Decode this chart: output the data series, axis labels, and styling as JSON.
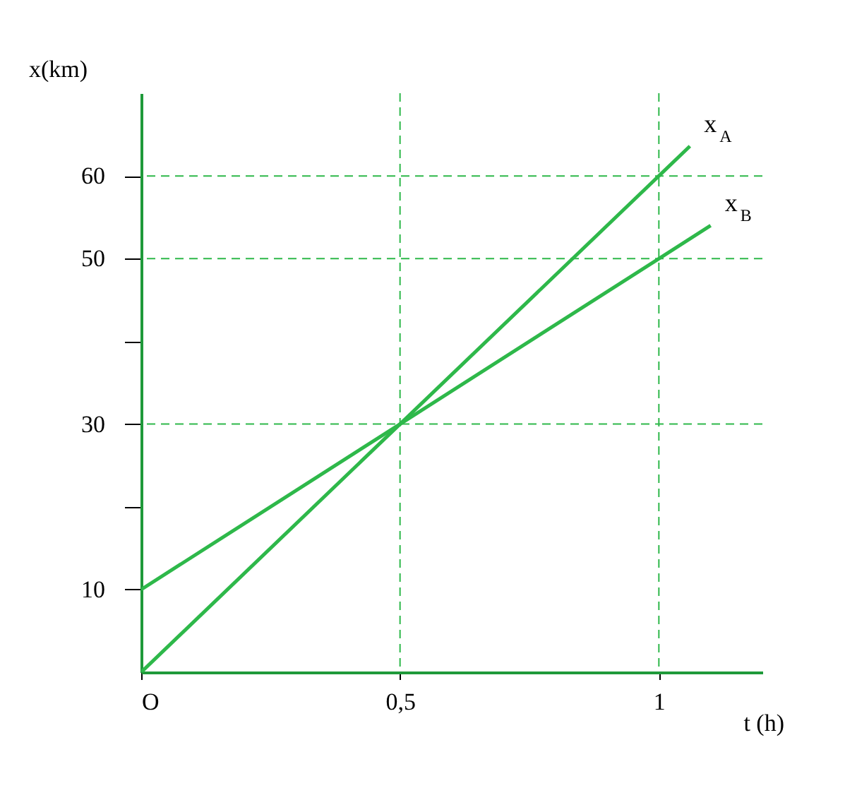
{
  "chart_data": {
    "type": "line",
    "xlabel": "t (h)",
    "ylabel": "x(km)",
    "xlim": [
      0,
      1.2
    ],
    "ylim": [
      0,
      70
    ],
    "xticks": [
      {
        "value": 0,
        "label": "O"
      },
      {
        "value": 0.5,
        "label": "0,5"
      },
      1
    ],
    "yticks": [
      10,
      {
        "value": 20,
        "label": null
      },
      30,
      {
        "value": 40,
        "label": null
      },
      50,
      60
    ],
    "grid": false,
    "line_style": "solid",
    "series": [
      {
        "name": "x$_{A}$",
        "color": "#2eb84a",
        "x": [
          0,
          0.5,
          1,
          1.06
        ],
        "values": [
          0,
          30,
          60,
          63.6
        ]
      },
      {
        "name": "x$_{B}$",
        "color": "#2eb84a",
        "x": [
          0,
          0.5,
          1,
          1.1
        ],
        "values": [
          10,
          30,
          50,
          54
        ]
      }
    ],
    "ref_lines": [
      {
        "axis": "y",
        "value": 60,
        "label": null,
        "line_style": "dashed"
      },
      {
        "axis": "y",
        "value": 50,
        "label": null,
        "line_style": "dashed"
      },
      {
        "axis": "y",
        "value": 30,
        "label": null,
        "line_style": "dashed"
      },
      {
        "axis": "x",
        "value": 0.5,
        "label": null,
        "line_style": "dashed"
      },
      {
        "axis": "x",
        "value": 1,
        "label": null,
        "line_style": "dashed"
      }
    ]
  }
}
